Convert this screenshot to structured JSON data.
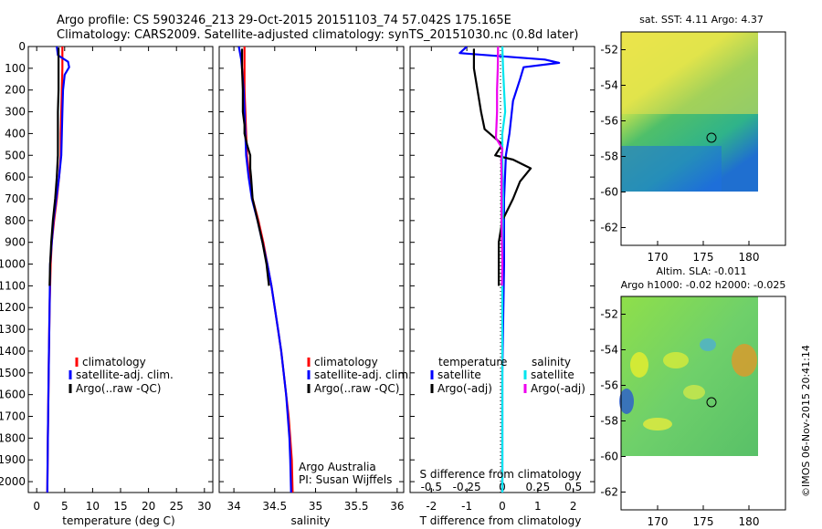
{
  "header": {
    "line1": "Argo profile: CS 5903246_213 29-Oct-2015 20151103_74 57.042S 175.165E",
    "line2": "Climatology: CARS2009. Satellite-adjusted climatology: synTS_20151030.nc (0.8d later)"
  },
  "credit": "©IMOS 06-Nov-2015 20:41:14",
  "colors": {
    "climatology": "#ff0000",
    "satellite": "#0000ff",
    "argo": "#000000",
    "salinity_satellite": "#00e5ee",
    "salinity_argo": "#ee00ee"
  },
  "chart_data": [
    {
      "type": "line",
      "name": "temperature",
      "xlabel": "temperature (deg C)",
      "ylabel": "",
      "xlim": [
        -1.5,
        31.5
      ],
      "ylim": [
        0,
        2050
      ],
      "y_inverted": true,
      "xticks": [
        0,
        5,
        10,
        15,
        20,
        25,
        30
      ],
      "yticks": [
        0,
        100,
        200,
        300,
        400,
        500,
        600,
        700,
        800,
        900,
        1000,
        1100,
        1200,
        1300,
        1400,
        1500,
        1600,
        1700,
        1800,
        1900,
        2000
      ],
      "legend": [
        "climatology",
        "satellite-adj. clim.",
        "Argo(..raw -QC)"
      ],
      "legend_position": "middle",
      "series": [
        {
          "name": "climatology",
          "color": "#ff0000",
          "points": [
            [
              4.6,
              0
            ],
            [
              4.6,
              50
            ],
            [
              4.6,
              100
            ],
            [
              4.5,
              200
            ],
            [
              4.4,
              300
            ],
            [
              4.3,
              400
            ],
            [
              4.3,
              500
            ],
            [
              4.0,
              600
            ],
            [
              3.6,
              700
            ],
            [
              3.1,
              800
            ],
            [
              2.7,
              900
            ],
            [
              2.5,
              1000
            ],
            [
              2.3,
              1200
            ],
            [
              2.2,
              1400
            ],
            [
              2.1,
              1600
            ],
            [
              2.0,
              1800
            ],
            [
              1.9,
              2050
            ]
          ]
        },
        {
          "name": "satellite-adj. clim.",
          "color": "#0000ff",
          "points": [
            [
              3.6,
              0
            ],
            [
              3.8,
              40
            ],
            [
              5.6,
              70
            ],
            [
              5.8,
              95
            ],
            [
              5.0,
              130
            ],
            [
              4.7,
              200
            ],
            [
              4.6,
              300
            ],
            [
              4.5,
              400
            ],
            [
              4.4,
              500
            ],
            [
              4.0,
              600
            ],
            [
              3.5,
              700
            ],
            [
              3.0,
              800
            ],
            [
              2.7,
              900
            ],
            [
              2.4,
              1000
            ],
            [
              2.3,
              1200
            ],
            [
              2.2,
              1400
            ],
            [
              2.1,
              1600
            ],
            [
              2.0,
              1800
            ],
            [
              1.9,
              2050
            ]
          ]
        },
        {
          "name": "Argo(..raw -QC)",
          "color": "#000000",
          "points": [
            [
              3.9,
              5
            ],
            [
              3.9,
              100
            ],
            [
              3.9,
              200
            ],
            [
              3.8,
              300
            ],
            [
              3.8,
              400
            ],
            [
              3.8,
              500
            ],
            [
              3.6,
              600
            ],
            [
              3.3,
              700
            ],
            [
              2.9,
              800
            ],
            [
              2.6,
              900
            ],
            [
              2.4,
              1000
            ],
            [
              2.3,
              1100
            ]
          ]
        }
      ],
      "annotations": []
    },
    {
      "type": "line",
      "name": "salinity",
      "xlabel": "salinity",
      "ylabel": "",
      "xlim": [
        33.82,
        36.08
      ],
      "ylim": [
        0,
        2050
      ],
      "y_inverted": true,
      "xticks": [
        34,
        34.5,
        35,
        35.5,
        36
      ],
      "legend": [
        "climatology",
        "satellite-adj. clim.",
        "Argo(..raw -QC)"
      ],
      "legend_position": "middle",
      "series": [
        {
          "name": "climatology",
          "color": "#ff0000",
          "points": [
            [
              34.13,
              0
            ],
            [
              34.13,
              100
            ],
            [
              34.13,
              200
            ],
            [
              34.14,
              300
            ],
            [
              34.15,
              400
            ],
            [
              34.16,
              500
            ],
            [
              34.19,
              600
            ],
            [
              34.23,
              700
            ],
            [
              34.3,
              800
            ],
            [
              34.36,
              900
            ],
            [
              34.41,
              1000
            ],
            [
              34.46,
              1100
            ],
            [
              34.5,
              1200
            ],
            [
              34.54,
              1300
            ],
            [
              34.58,
              1400
            ],
            [
              34.61,
              1500
            ],
            [
              34.64,
              1600
            ],
            [
              34.67,
              1700
            ],
            [
              34.69,
              1800
            ],
            [
              34.71,
              1900
            ],
            [
              34.72,
              2050
            ]
          ]
        },
        {
          "name": "satellite-adj. clim.",
          "color": "#0000ff",
          "points": [
            [
              34.06,
              0
            ],
            [
              34.09,
              60
            ],
            [
              34.1,
              100
            ],
            [
              34.12,
              200
            ],
            [
              34.13,
              300
            ],
            [
              34.14,
              400
            ],
            [
              34.15,
              500
            ],
            [
              34.18,
              600
            ],
            [
              34.22,
              700
            ],
            [
              34.29,
              800
            ],
            [
              34.35,
              900
            ],
            [
              34.41,
              1000
            ],
            [
              34.46,
              1100
            ],
            [
              34.5,
              1200
            ],
            [
              34.54,
              1300
            ],
            [
              34.58,
              1400
            ],
            [
              34.61,
              1500
            ],
            [
              34.64,
              1600
            ],
            [
              34.66,
              1700
            ],
            [
              34.68,
              1800
            ],
            [
              34.69,
              1900
            ],
            [
              34.7,
              2050
            ]
          ]
        },
        {
          "name": "Argo(..raw -QC)",
          "color": "#000000",
          "points": [
            [
              34.1,
              10
            ],
            [
              34.1,
              100
            ],
            [
              34.11,
              200
            ],
            [
              34.11,
              300
            ],
            [
              34.13,
              360
            ],
            [
              34.13,
              400
            ],
            [
              34.16,
              450
            ],
            [
              34.2,
              500
            ],
            [
              34.2,
              560
            ],
            [
              34.21,
              600
            ],
            [
              34.23,
              700
            ],
            [
              34.29,
              800
            ],
            [
              34.35,
              900
            ],
            [
              34.4,
              1000
            ],
            [
              34.43,
              1100
            ]
          ]
        }
      ],
      "annotations": [
        "Argo Australia",
        "PI: Susan Wijffels"
      ]
    },
    {
      "type": "line",
      "name": "difference",
      "xlabel": "T difference from climatology",
      "xlabel_top": "S difference from climatology",
      "xlim": [
        -2.6,
        2.6
      ],
      "ylim": [
        0,
        2050
      ],
      "y_inverted": true,
      "xticks": [
        -2,
        -1,
        0,
        1,
        2
      ],
      "xticks_s": [
        -0.5,
        -0.25,
        0,
        0.25,
        0.5
      ],
      "legend_headers": [
        "temperature",
        "salinity"
      ],
      "legend": [
        "satellite",
        "Argo(-adj)",
        "satellite",
        "Argo(-adj)"
      ],
      "legend_position": "middle",
      "series": [
        {
          "name": "temperature satellite",
          "color": "#0000ff",
          "points": [
            [
              -1.0,
              0
            ],
            [
              -1.2,
              30
            ],
            [
              1.2,
              60
            ],
            [
              1.6,
              75
            ],
            [
              0.6,
              95
            ],
            [
              0.5,
              150
            ],
            [
              0.3,
              250
            ],
            [
              0.2,
              400
            ],
            [
              0.1,
              500
            ],
            [
              0.05,
              700
            ],
            [
              0.05,
              1000
            ],
            [
              0.0,
              1500
            ],
            [
              0.0,
              2050
            ]
          ]
        },
        {
          "name": "temperature Argo(-adj)",
          "color": "#000000",
          "points": [
            [
              -0.8,
              10
            ],
            [
              -0.8,
              100
            ],
            [
              -0.7,
              200
            ],
            [
              -0.6,
              300
            ],
            [
              -0.5,
              380
            ],
            [
              0.0,
              450
            ],
            [
              -0.2,
              500
            ],
            [
              0.3,
              520
            ],
            [
              0.8,
              560
            ],
            [
              0.5,
              620
            ],
            [
              0.3,
              700
            ],
            [
              0.0,
              800
            ],
            [
              -0.1,
              900
            ],
            [
              -0.1,
              1000
            ],
            [
              -0.1,
              1100
            ]
          ]
        },
        {
          "name": "salinity satellite",
          "color": "#00e5ee",
          "points": [
            [
              0.0,
              0
            ],
            [
              0.02,
              100
            ],
            [
              0.05,
              200
            ],
            [
              0.08,
              300
            ],
            [
              0.0,
              400
            ],
            [
              0.0,
              500
            ],
            [
              0.02,
              700
            ],
            [
              0.0,
              1000
            ],
            [
              0.0,
              2050
            ]
          ]
        },
        {
          "name": "salinity Argo(-adj)",
          "color": "#ee00ee",
          "points": [
            [
              -0.12,
              0
            ],
            [
              -0.13,
              100
            ],
            [
              -0.15,
              200
            ],
            [
              -0.15,
              300
            ],
            [
              -0.18,
              420
            ],
            [
              0.0,
              470
            ],
            [
              -0.03,
              520
            ],
            [
              -0.02,
              600
            ],
            [
              -0.02,
              800
            ],
            [
              0.0,
              1000
            ],
            [
              -0.01,
              1100
            ]
          ]
        }
      ],
      "annotations": []
    },
    {
      "type": "heatmap",
      "name": "sst map",
      "title": "sat. SST: 4.11  Argo: 4.37",
      "xlim": [
        166,
        184
      ],
      "ylim": [
        -63,
        -51
      ],
      "xticks": [
        170,
        175,
        180
      ],
      "yticks": [
        -52,
        -54,
        -56,
        -58,
        -60,
        -62
      ],
      "profile_marker": [
        175.165,
        -57.042
      ]
    },
    {
      "type": "heatmap",
      "name": "sla map",
      "title": "Altim. SLA: -0.011",
      "subtitle": "Argo h1000: -0.02  h2000: -0.025",
      "xlim": [
        166,
        184
      ],
      "ylim": [
        -63,
        -51
      ],
      "xticks": [
        170,
        175,
        180
      ],
      "yticks": [
        -52,
        -54,
        -56,
        -58,
        -60,
        -62
      ],
      "profile_marker": [
        175.165,
        -57.042
      ]
    }
  ]
}
